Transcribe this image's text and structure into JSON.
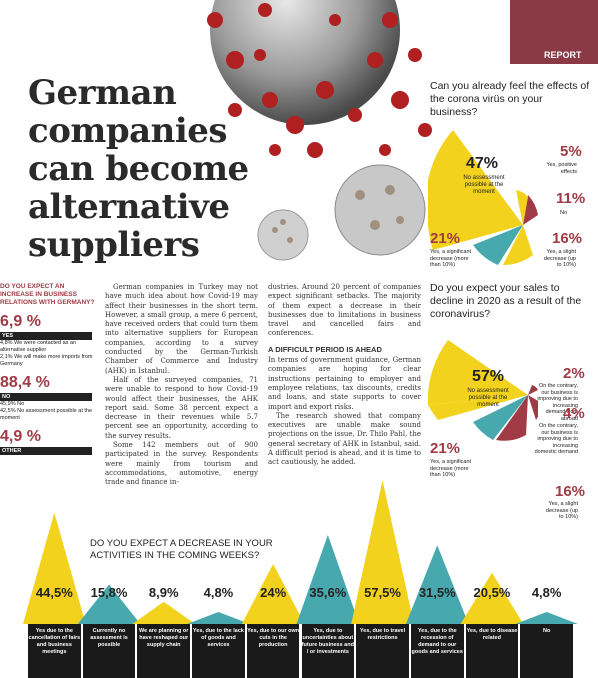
{
  "report_label": "REPORT",
  "headline": "German companies can become alternative suppliers",
  "pie1": {
    "question": "Can you already feel the effects of the corona virüs on your business?",
    "slices": [
      {
        "pct": "47%",
        "label": "No assessment possible at the moment",
        "color": "#f2d21c"
      },
      {
        "pct": "5%",
        "label": "Yes, positive effects",
        "color": "#a03a45"
      },
      {
        "pct": "11%",
        "label": "No",
        "color": "#a03a45"
      },
      {
        "pct": "16%",
        "label": "Yes, a slight decrease (up to 10%)",
        "color": "#a03a45"
      },
      {
        "pct": "21%",
        "label": "Yes, a significant decrease (more than 10%)",
        "color": "#47a9ad"
      }
    ]
  },
  "pie2": {
    "question": "Do you expect your sales to decline in 2020 as a result of the coronavirus?",
    "slices": [
      {
        "pct": "57%",
        "label": "No assessment possible at the moment",
        "color": "#f2d21c"
      },
      {
        "pct": "2%",
        "label": "On the contrary, our business is improving due to increasing demand from abroad",
        "color": "#a03a45"
      },
      {
        "pct": "4%",
        "label": "On the contrary, our business is improving due to increasing domestic demand",
        "color": "#a03a45"
      },
      {
        "pct": "16%",
        "label": "Yes, a slight decrease (up to 10%)",
        "color": "#a03a45"
      },
      {
        "pct": "21%",
        "label": "Yes, a significant decrease (more than 10%)",
        "color": "#47a9ad"
      }
    ]
  },
  "sidebar": {
    "question": "DO YOU EXPECT AN INCREASE IN BUSINESS RELATIONS WITH GERMANY?",
    "groups": [
      {
        "value": "6,9 %",
        "label": "YES",
        "subs": [
          "4,8% We were contacted as an alternative supplier",
          "2,1% We will make more imports from Germany"
        ]
      },
      {
        "value": "88,4 %",
        "label": "NO",
        "subs": [
          "45,9% No",
          "42,5% No assessment possible at the moment"
        ]
      },
      {
        "value": "4,9 %",
        "label": "OTHER",
        "subs": []
      }
    ]
  },
  "article": {
    "col1": [
      "German companies in Turkey may not have much idea about how Covid-19 may affect their businesses in the short term. However, a small group, a mere 6 percent, have received orders that could turn them into alternative suppliers for European companies, according to a survey conducted by the German-Turkish Chamber of Commerce and Industry (AHK) in Istanbul.",
      "Half of the surveyed companies, 71 were unable to respond to how Covid-19 would affect their businesses, the AHK report said. Some 38 percent expect a decrease in their revenues while 5.7 percent see an opportunity, according to the survey results.",
      "Some 142 members out of 900 participated in the survey. Respondents were mainly from tourism and accommodations, automotive, energy trade and finance in-"
    ],
    "col2a": "dustries. Around 20 percent of companies expect significant setbacks. The majority of them expect a decrease in their businesses due to limitations in business travel and cancelled fairs and conferences.",
    "col2_heading": "A DIFFICULT PERIOD IS AHEAD",
    "col2b": "In terms of government guidance, German companies are hoping for clear instructions pertaining to employer and employee relations, tax discounts, credits and loans, and state supports to cover import and export risks.",
    "col2c": "The research showed that company executives are unable make sound projections on the issue, Dr. Thilo Pahl, the general secretary of AHK in Istanbul, said. A difficult period is ahead, and it is time to act cautiously, he added."
  },
  "bottom_chart": {
    "question": "DO YOU EXPECT A DECREASE IN YOUR ACTIVITIES IN THE COMING WEEKS?",
    "chart_data": {
      "type": "bar",
      "categories": [
        "Yes due to the cancellation of fairs and business meetings",
        "Currently no assessment is possible",
        "We are planning or have reshaped our supply chain",
        "Yes, due to the lack of goods and services",
        "Yes, due to our own cuts in the production",
        "Yes, due to uncertainties about future business and / or investments",
        "Yes, due to travel restrictions",
        "Yes, due to the recession of demand to our goods and services",
        "Yes, due to disease related",
        "No"
      ],
      "values": [
        44.5,
        15.8,
        8.9,
        4.8,
        24,
        35.6,
        57.5,
        31.5,
        20.5,
        4.8
      ],
      "labels": [
        "44,5%",
        "15,8%",
        "8,9%",
        "4,8%",
        "24%",
        "35,6%",
        "57,5%",
        "31,5%",
        "20,5%",
        "4,8%"
      ],
      "colors": [
        "#f2d21c",
        "#47a9ad",
        "#f2d21c",
        "#47a9ad",
        "#f2d21c",
        "#47a9ad",
        "#f2d21c",
        "#47a9ad",
        "#f2d21c",
        "#47a9ad"
      ]
    }
  }
}
